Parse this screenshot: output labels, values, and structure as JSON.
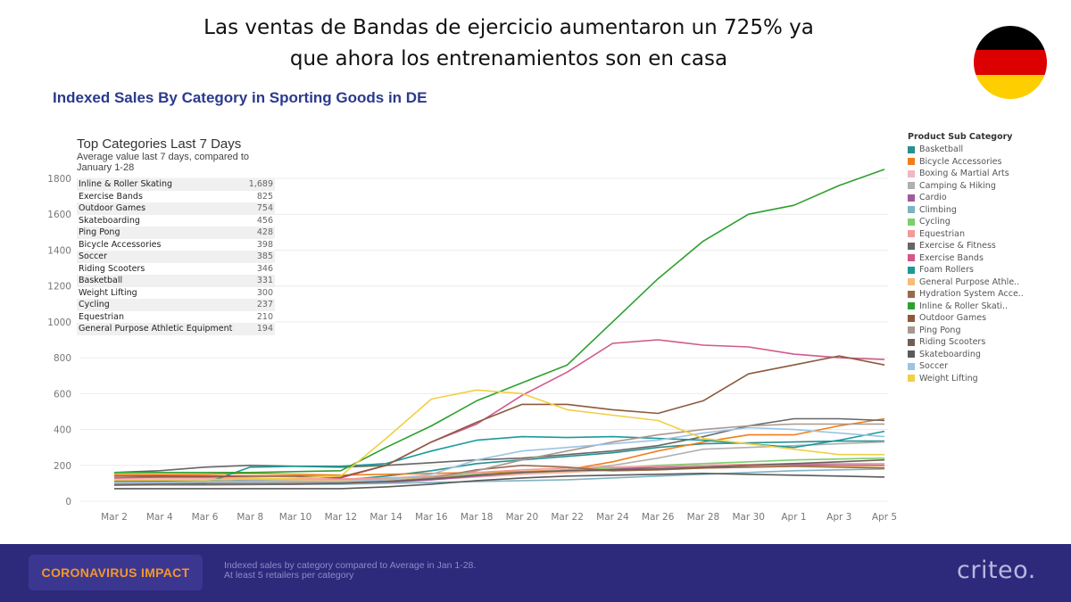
{
  "headline": {
    "line1": "Las ventas de Bandas de ejercicio aumentaron un 725% ya",
    "line2": "que ahora los entrenamientos son en casa"
  },
  "flag": {
    "icon": "germany-flag-icon",
    "colors": [
      "#000000",
      "#dd0000",
      "#ffce00"
    ]
  },
  "chart_title": "Indexed Sales By Category in Sporting Goods in DE",
  "inset": {
    "title": "Top Categories Last 7 Days",
    "subtitle": "Average value last 7 days, compared to January 1-28",
    "rows": [
      {
        "name": "Inline & Roller Skating",
        "value": "1,689"
      },
      {
        "name": "Exercise Bands",
        "value": "825"
      },
      {
        "name": "Outdoor Games",
        "value": "754"
      },
      {
        "name": "Skateboarding",
        "value": "456"
      },
      {
        "name": "Ping Pong",
        "value": "428"
      },
      {
        "name": "Bicycle Accessories",
        "value": "398"
      },
      {
        "name": "Soccer",
        "value": "385"
      },
      {
        "name": "Riding Scooters",
        "value": "346"
      },
      {
        "name": "Basketball",
        "value": "331"
      },
      {
        "name": "Weight Lifting",
        "value": "300"
      },
      {
        "name": "Cycling",
        "value": "237"
      },
      {
        "name": "Equestrian",
        "value": "210"
      },
      {
        "name": "General Purpose Athletic Equipment",
        "value": "194"
      }
    ]
  },
  "legend": {
    "title": "Product Sub Category",
    "placement": "right"
  },
  "chart_data": {
    "type": "line",
    "x_labels": [
      "Mar 2",
      "Mar 4",
      "Mar 6",
      "Mar 8",
      "Mar 10",
      "Mar 12",
      "Mar 14",
      "Mar 16",
      "Mar 18",
      "Mar 20",
      "Mar 22",
      "Mar 24",
      "Mar 26",
      "Mar 28",
      "Mar 30",
      "Apr 1",
      "Apr 3",
      "Apr 5"
    ],
    "y_ticks": [
      0,
      200,
      400,
      600,
      800,
      1000,
      1200,
      1400,
      1600,
      1800
    ],
    "ylim": [
      0,
      1800
    ],
    "grid": "horizontal",
    "series": [
      {
        "name": "Basketball",
        "color": "#2a8f8f",
        "values": [
          120,
          115,
          112,
          120,
          125,
          118,
          140,
          170,
          210,
          230,
          250,
          270,
          300,
          320,
          325,
          330,
          335,
          335
        ]
      },
      {
        "name": "Bicycle Accessories",
        "color": "#f07f1a",
        "values": [
          150,
          148,
          150,
          155,
          150,
          145,
          150,
          155,
          160,
          165,
          175,
          220,
          280,
          330,
          370,
          370,
          420,
          460
        ]
      },
      {
        "name": "Boxing & Martial Arts",
        "color": "#f4b6c2",
        "values": [
          95,
          95,
          100,
          100,
          100,
          105,
          110,
          120,
          135,
          150,
          160,
          175,
          190,
          195,
          200,
          200,
          205,
          210
        ]
      },
      {
        "name": "Camping & Hiking",
        "color": "#b0b0b0",
        "values": [
          110,
          110,
          110,
          115,
          115,
          110,
          115,
          130,
          150,
          160,
          175,
          200,
          240,
          290,
          300,
          310,
          320,
          330
        ]
      },
      {
        "name": "Cardio",
        "color": "#a05b9a",
        "values": [
          100,
          100,
          105,
          105,
          100,
          100,
          105,
          120,
          140,
          155,
          170,
          180,
          190,
          200,
          205,
          205,
          200,
          200
        ]
      },
      {
        "name": "Climbing",
        "color": "#7fb3c0",
        "values": [
          90,
          90,
          90,
          92,
          95,
          95,
          100,
          105,
          110,
          115,
          120,
          130,
          140,
          150,
          160,
          170,
          175,
          180
        ]
      },
      {
        "name": "Cycling",
        "color": "#7ad06d",
        "values": [
          120,
          118,
          120,
          125,
          120,
          118,
          125,
          135,
          150,
          160,
          170,
          185,
          200,
          210,
          220,
          230,
          235,
          240
        ]
      },
      {
        "name": "Equestrian",
        "color": "#f59a9a",
        "values": [
          130,
          130,
          130,
          130,
          125,
          125,
          130,
          140,
          160,
          175,
          185,
          190,
          195,
          200,
          205,
          210,
          210,
          210
        ]
      },
      {
        "name": "Exercise & Fitness",
        "color": "#666666",
        "values": [
          160,
          170,
          190,
          200,
          195,
          190,
          200,
          215,
          230,
          240,
          260,
          280,
          310,
          360,
          420,
          460,
          460,
          450
        ]
      },
      {
        "name": "Exercise Bands",
        "color": "#d1588a",
        "values": [
          130,
          135,
          135,
          140,
          140,
          130,
          200,
          330,
          430,
          590,
          720,
          880,
          900,
          870,
          860,
          820,
          800,
          790
        ]
      },
      {
        "name": "Foam Rollers",
        "color": "#1a9a9a",
        "values": [
          100,
          100,
          100,
          190,
          195,
          195,
          210,
          280,
          340,
          360,
          355,
          360,
          350,
          340,
          320,
          300,
          340,
          390
        ]
      },
      {
        "name": "General Purpose Athletic Equipment",
        "color": "#f6bc78",
        "values": [
          120,
          120,
          120,
          125,
          120,
          115,
          120,
          130,
          145,
          155,
          165,
          170,
          175,
          185,
          190,
          195,
          195,
          195
        ]
      },
      {
        "name": "Hydration System Accessories",
        "color": "#9a6a4a",
        "values": [
          110,
          110,
          110,
          110,
          105,
          105,
          110,
          130,
          175,
          200,
          190,
          170,
          175,
          185,
          190,
          195,
          190,
          185
        ]
      },
      {
        "name": "Inline & Roller Skating",
        "color": "#2ea02e",
        "values": [
          160,
          160,
          160,
          160,
          165,
          170,
          300,
          420,
          560,
          660,
          760,
          1000,
          1240,
          1450,
          1600,
          1650,
          1760,
          1850
        ]
      },
      {
        "name": "Outdoor Games",
        "color": "#8b5a3c",
        "values": [
          140,
          140,
          140,
          140,
          140,
          135,
          200,
          330,
          440,
          540,
          540,
          510,
          490,
          560,
          710,
          760,
          810,
          760
        ]
      },
      {
        "name": "Ping Pong",
        "color": "#a89890",
        "values": [
          100,
          100,
          105,
          105,
          100,
          100,
          110,
          130,
          170,
          230,
          280,
          330,
          370,
          400,
          420,
          430,
          430,
          430
        ]
      },
      {
        "name": "Riding Scooters",
        "color": "#6f5f57",
        "values": [
          90,
          95,
          95,
          95,
          95,
          100,
          110,
          125,
          145,
          160,
          170,
          175,
          180,
          190,
          200,
          210,
          220,
          230
        ]
      },
      {
        "name": "Skateboarding",
        "color": "#5a5a5a",
        "values": [
          70,
          70,
          70,
          70,
          70,
          70,
          80,
          95,
          115,
          130,
          140,
          145,
          150,
          155,
          150,
          145,
          140,
          135
        ]
      },
      {
        "name": "Soccer",
        "color": "#9cc3e3",
        "values": [
          105,
          105,
          110,
          110,
          110,
          110,
          120,
          150,
          230,
          280,
          300,
          320,
          340,
          380,
          410,
          400,
          380,
          360
        ]
      },
      {
        "name": "Weight Lifting",
        "color": "#f2cf45",
        "values": [
          120,
          120,
          120,
          125,
          130,
          140,
          350,
          570,
          620,
          600,
          510,
          480,
          450,
          350,
          320,
          290,
          260,
          260
        ]
      }
    ]
  },
  "footer": {
    "badge": "CORONAVIRUS IMPACT",
    "note_line1": "Indexed sales by category compared to Average in Jan 1-28.",
    "note_line2": "At least 5 retailers per category",
    "logo": "criteo."
  }
}
